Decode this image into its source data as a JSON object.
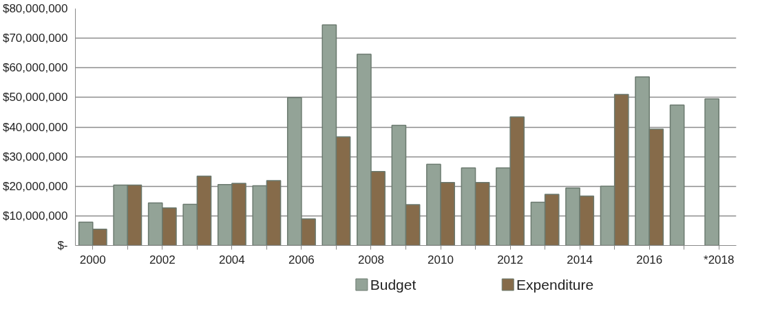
{
  "chart_data": {
    "type": "bar",
    "categories": [
      "2000",
      null,
      "2002",
      null,
      "2004",
      null,
      "2006",
      null,
      "2008",
      null,
      "2010",
      null,
      "2012",
      null,
      "2014",
      null,
      "2016",
      null,
      "*2018"
    ],
    "series": [
      {
        "name": "Budget",
        "color": "#93a397",
        "values": [
          7900000,
          20400000,
          14400000,
          13900000,
          20600000,
          20200000,
          49900000,
          74500000,
          64600000,
          40600000,
          27400000,
          26200000,
          26200000,
          14600000,
          19400000,
          20000000,
          56900000,
          47400000,
          49500000
        ]
      },
      {
        "name": "Expenditure",
        "color": "#866b4a",
        "values": [
          5500000,
          20400000,
          12700000,
          23400000,
          21000000,
          21900000,
          9000000,
          36700000,
          25000000,
          13800000,
          21300000,
          21300000,
          43400000,
          17300000,
          16700000,
          51000000,
          39300000,
          null,
          null
        ]
      }
    ],
    "ylim": [
      0,
      80000000
    ],
    "yticks": [
      {
        "value": 0,
        "label": "$-"
      },
      {
        "value": 10000000,
        "label": "$10,000,000"
      },
      {
        "value": 20000000,
        "label": "$20,000,000"
      },
      {
        "value": 30000000,
        "label": "$30,000,000"
      },
      {
        "value": 40000000,
        "label": "$40,000,000"
      },
      {
        "value": 50000000,
        "label": "$50,000,000"
      },
      {
        "value": 60000000,
        "label": "$60,000,000"
      },
      {
        "value": 70000000,
        "label": "$70,000,000"
      },
      {
        "value": 80000000,
        "label": "$80,000,000"
      }
    ],
    "grid": "y",
    "legend": "bottom"
  }
}
